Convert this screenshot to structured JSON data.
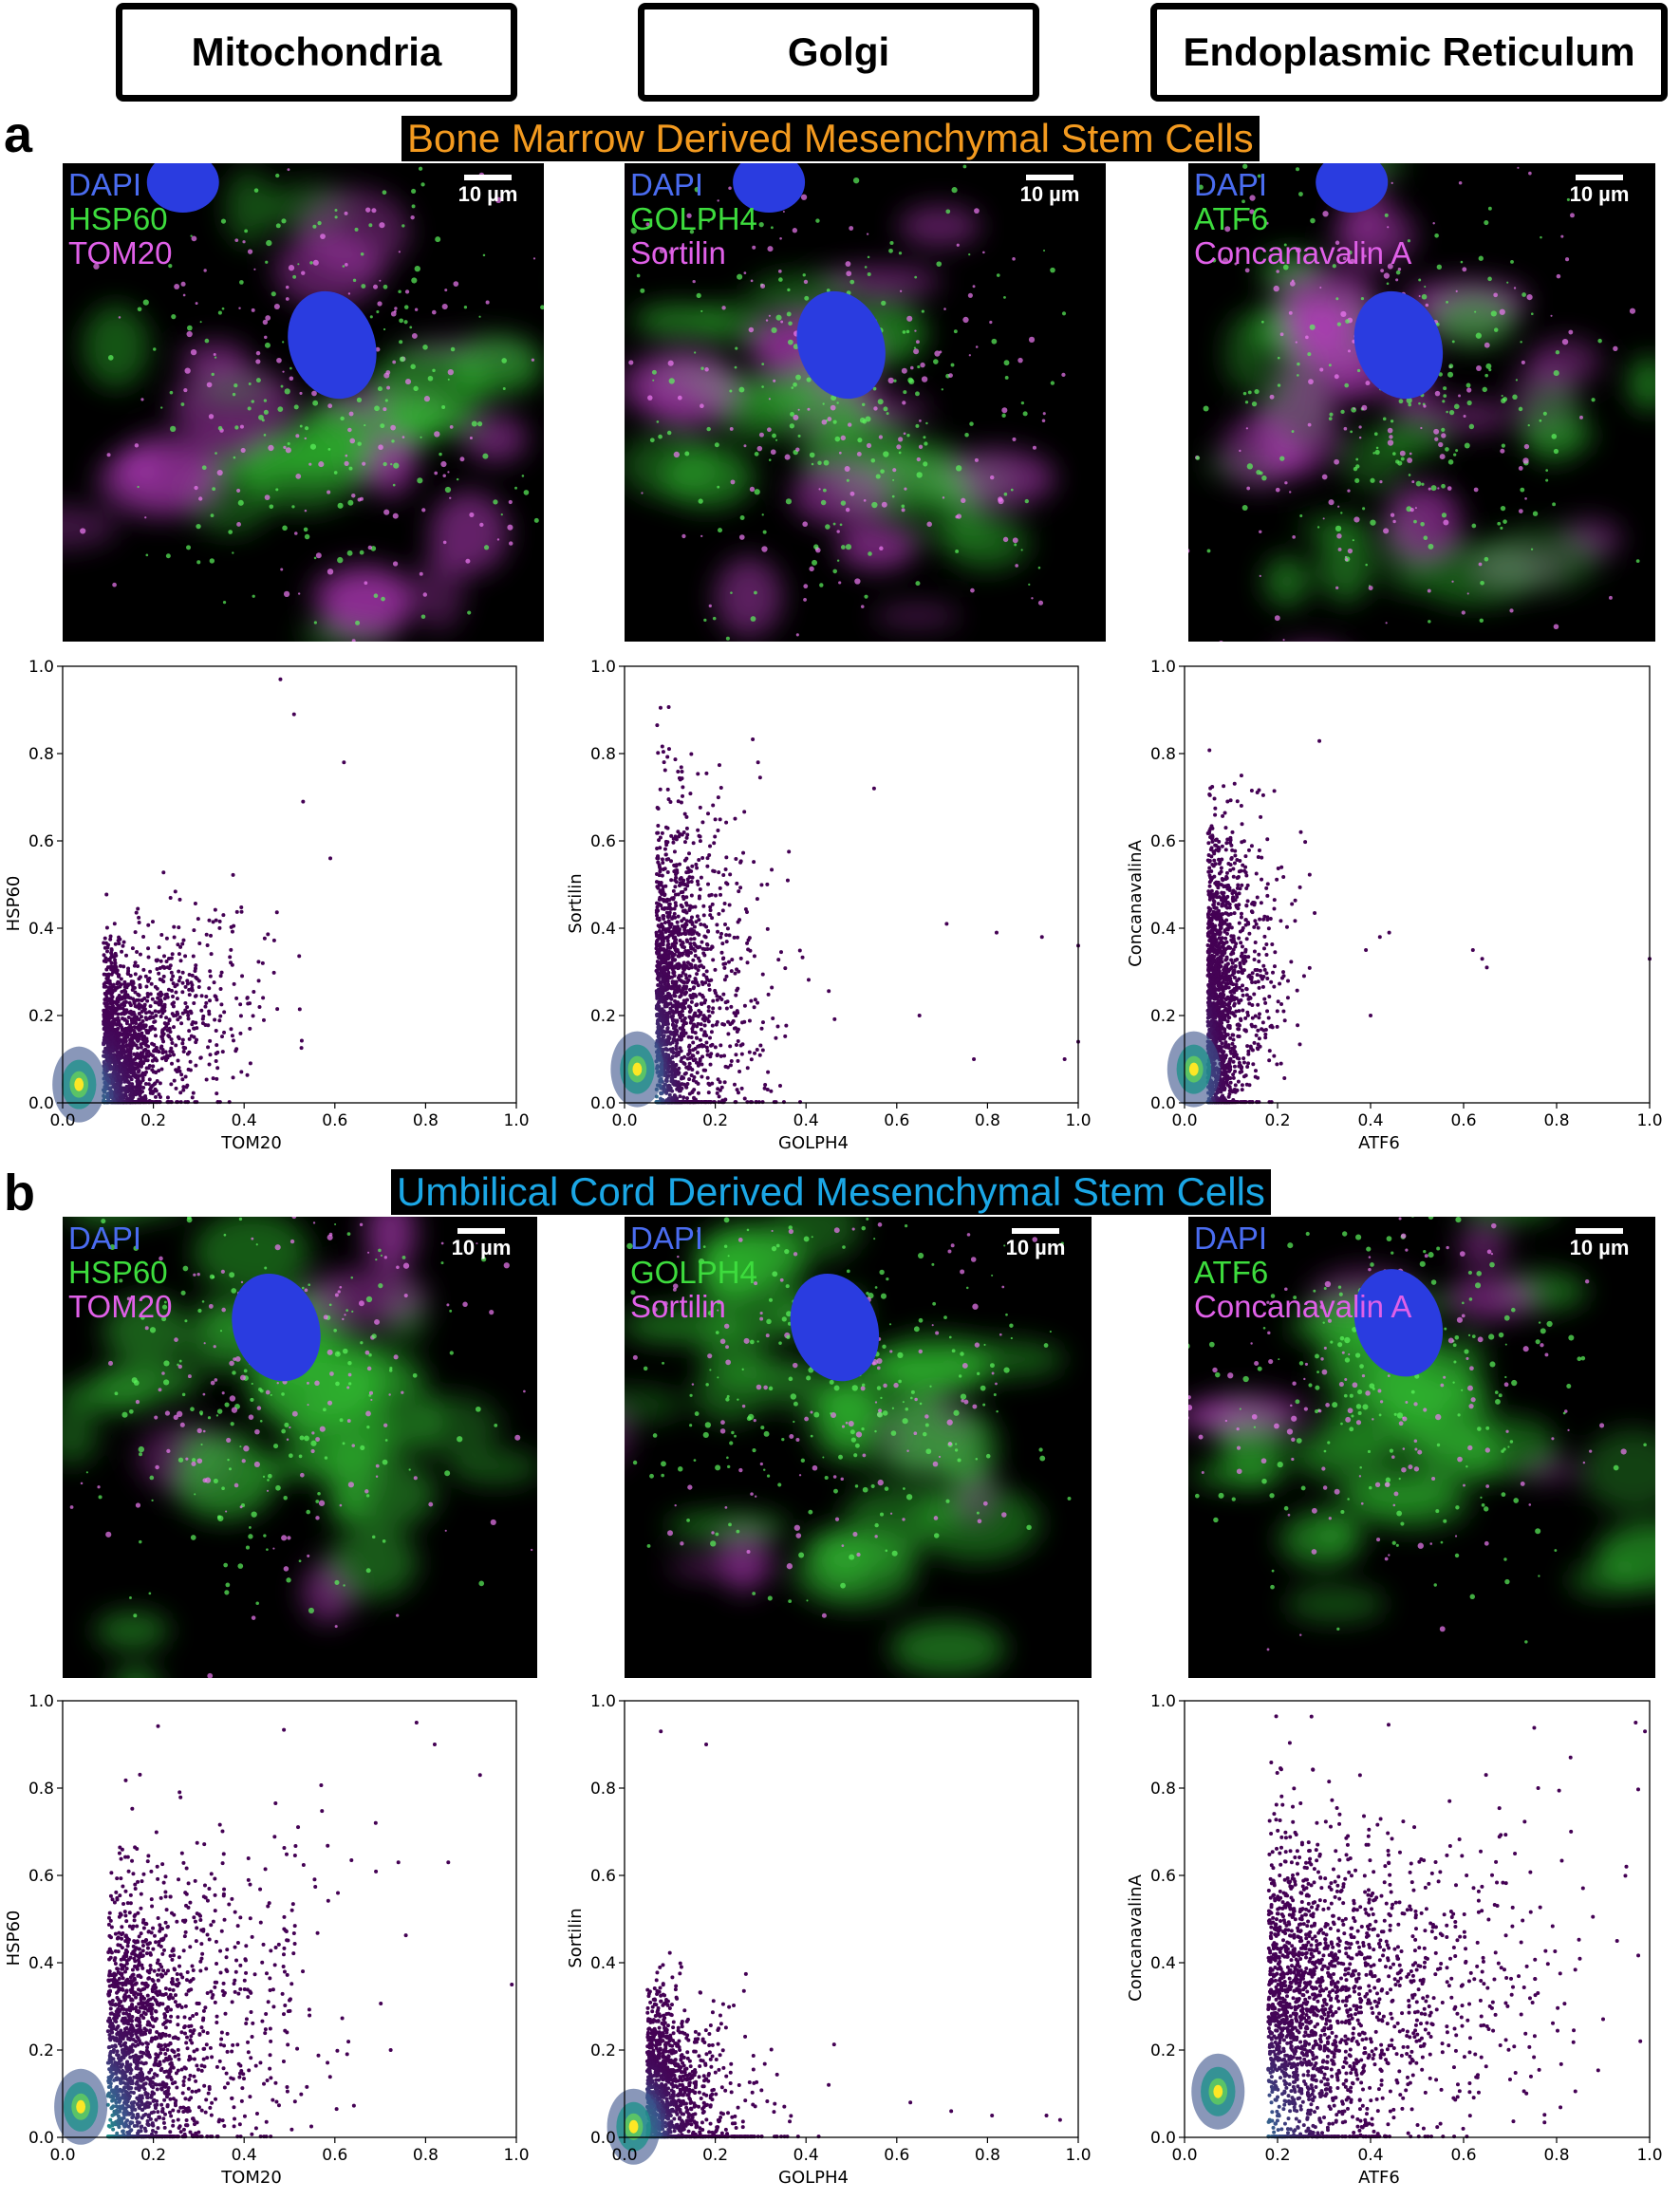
{
  "headers": [
    "Mitochondria",
    "Golgi",
    "Endoplasmic Reticulum"
  ],
  "panels": [
    {
      "letter": "a",
      "title": "Bone Marrow Derived Mesenchymal Stem Cells",
      "title_color": "#f39a1f",
      "images": [
        {
          "labels": [
            "DAPI",
            "HSP60",
            "TOM20"
          ],
          "scale": "10 µm"
        },
        {
          "labels": [
            "DAPI",
            "GOLPH4",
            "Sortilin"
          ],
          "scale": "10 µm"
        },
        {
          "labels": [
            "DAPI",
            "ATF6",
            "Concanavalin A"
          ],
          "scale": "10 µm"
        }
      ]
    },
    {
      "letter": "b",
      "title": "Umbilical Cord Derived Mesenchymal Stem Cells",
      "title_color": "#1ba7e6",
      "images": [
        {
          "labels": [
            "DAPI",
            "HSP60",
            "TOM20"
          ],
          "scale": "10 µm"
        },
        {
          "labels": [
            "DAPI",
            "GOLPH4",
            "Sortilin"
          ],
          "scale": "10 µm"
        },
        {
          "labels": [
            "DAPI",
            "ATF6",
            "Concanavalin A"
          ],
          "scale": "10 µm"
        }
      ]
    }
  ],
  "label_colors": {
    "DAPI": "#4a6cf0",
    "green": "#3ddc3d",
    "magenta": "#e060e8"
  },
  "chart_data": [
    {
      "type": "scatter",
      "panel": "a",
      "xlabel": "TOM20",
      "ylabel": "HSP60",
      "xlim": [
        0,
        1
      ],
      "ylim": [
        0,
        1
      ],
      "xticks": [
        "0.0",
        "0.2",
        "0.4",
        "0.6",
        "0.8",
        "1.0"
      ],
      "yticks": [
        "0.0",
        "0.2",
        "0.4",
        "0.6",
        "0.8",
        "1.0"
      ],
      "density": "high near origin (viridis)",
      "spread_x": 0.55,
      "spread_y": 1.0,
      "outliers": [
        [
          0.62,
          0.78
        ],
        [
          0.48,
          0.97
        ],
        [
          0.53,
          0.69
        ],
        [
          0.59,
          0.56
        ],
        [
          0.51,
          0.89
        ]
      ]
    },
    {
      "type": "scatter",
      "panel": "a",
      "xlabel": "GOLPH4",
      "ylabel": "Sortilin",
      "xlim": [
        0,
        1
      ],
      "ylim": [
        0,
        1
      ],
      "xticks": [
        "0.0",
        "0.2",
        "0.4",
        "0.6",
        "0.8",
        "1.0"
      ],
      "yticks": [
        "0.0",
        "0.2",
        "0.4",
        "0.6",
        "0.8",
        "1.0"
      ],
      "density": "high near origin (viridis)",
      "spread_x": 0.35,
      "spread_y": 1.0,
      "outliers": [
        [
          0.71,
          0.41
        ],
        [
          0.82,
          0.39
        ],
        [
          0.92,
          0.38
        ],
        [
          1.0,
          0.36
        ],
        [
          0.97,
          0.1
        ],
        [
          0.77,
          0.1
        ],
        [
          1.0,
          0.14
        ],
        [
          0.65,
          0.2
        ],
        [
          0.55,
          0.72
        ]
      ]
    },
    {
      "type": "scatter",
      "panel": "a",
      "xlabel": "ATF6",
      "ylabel": "ConcanavalinA",
      "xlim": [
        0,
        1
      ],
      "ylim": [
        0,
        1
      ],
      "xticks": [
        "0.0",
        "0.2",
        "0.4",
        "0.6",
        "0.8",
        "1.0"
      ],
      "yticks": [
        "0.0",
        "0.2",
        "0.4",
        "0.6",
        "0.8",
        "1.0"
      ],
      "density": "high near origin (viridis)",
      "spread_x": 0.3,
      "spread_y": 1.0,
      "outliers": [
        [
          0.62,
          0.35
        ],
        [
          0.64,
          0.33
        ],
        [
          0.65,
          0.31
        ],
        [
          0.44,
          0.39
        ],
        [
          0.42,
          0.38
        ],
        [
          0.39,
          0.35
        ],
        [
          0.25,
          0.62
        ],
        [
          1.0,
          0.33
        ],
        [
          0.4,
          0.2
        ]
      ]
    },
    {
      "type": "scatter",
      "panel": "b",
      "xlabel": "TOM20",
      "ylabel": "HSP60",
      "xlim": [
        0,
        1
      ],
      "ylim": [
        0,
        1
      ],
      "xticks": [
        "0.0",
        "0.2",
        "0.4",
        "0.6",
        "0.8",
        "1.0"
      ],
      "yticks": [
        "0.0",
        "0.2",
        "0.4",
        "0.6",
        "0.8",
        "1.0"
      ],
      "density": "high near origin (viridis)",
      "spread_x": 0.8,
      "spread_y": 1.0,
      "outliers": [
        [
          0.85,
          0.63
        ],
        [
          0.74,
          0.63
        ],
        [
          0.82,
          0.9
        ],
        [
          0.99,
          0.35
        ],
        [
          0.92,
          0.83
        ],
        [
          0.69,
          0.72
        ],
        [
          0.78,
          0.95
        ]
      ]
    },
    {
      "type": "scatter",
      "panel": "b",
      "xlabel": "GOLPH4",
      "ylabel": "Sortilin",
      "xlim": [
        0,
        1
      ],
      "ylim": [
        0,
        1
      ],
      "xticks": [
        "0.0",
        "0.2",
        "0.4",
        "0.6",
        "0.8",
        "1.0"
      ],
      "yticks": [
        "0.0",
        "0.2",
        "0.4",
        "0.6",
        "0.8",
        "1.0"
      ],
      "density": "high near origin (viridis)",
      "spread_x": 0.6,
      "spread_y": 0.9,
      "outliers": [
        [
          0.81,
          0.05
        ],
        [
          0.93,
          0.05
        ],
        [
          0.96,
          0.04
        ],
        [
          0.72,
          0.06
        ],
        [
          0.63,
          0.08
        ],
        [
          0.45,
          0.12
        ],
        [
          0.08,
          0.93
        ],
        [
          0.18,
          0.9
        ]
      ]
    },
    {
      "type": "scatter",
      "panel": "b",
      "xlabel": "ATF6",
      "ylabel": "ConcanavalinA",
      "xlim": [
        0,
        1
      ],
      "ylim": [
        0,
        1
      ],
      "xticks": [
        "0.0",
        "0.2",
        "0.4",
        "0.6",
        "0.8",
        "1.0"
      ],
      "yticks": [
        "0.0",
        "0.2",
        "0.4",
        "0.6",
        "0.8",
        "1.0"
      ],
      "density": "high near origin (viridis)",
      "spread_x": 1.0,
      "spread_y": 1.0,
      "outliers": [
        [
          0.97,
          0.95
        ],
        [
          0.99,
          0.93
        ],
        [
          0.95,
          0.62
        ],
        [
          0.93,
          0.45
        ],
        [
          0.98,
          0.22
        ],
        [
          0.83,
          0.87
        ]
      ]
    }
  ]
}
